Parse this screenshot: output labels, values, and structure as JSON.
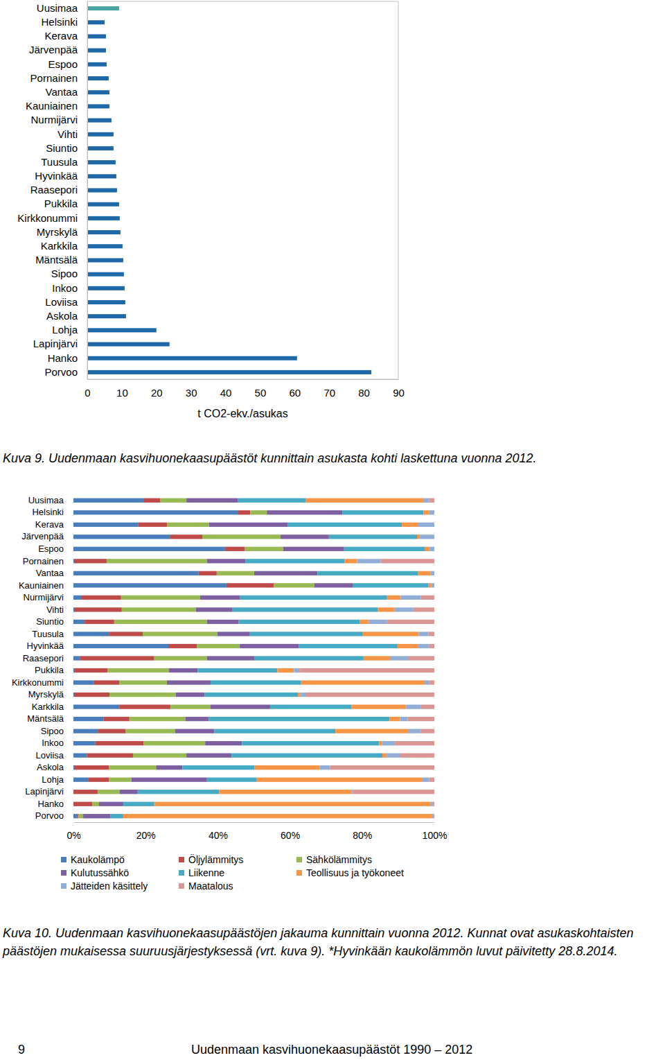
{
  "chart_data": [
    {
      "type": "bar",
      "orientation": "horizontal",
      "title": "Kuva 9. Uudenmaan kasvihuonekaasupäästöt kunnittain asukasta kohti laskettuna vuonna 2012.",
      "xlabel": "t CO2-ekv./asukas",
      "categories": [
        "Uusimaa",
        "Helsinki",
        "Kerava",
        "Järvenpää",
        "Espoo",
        "Pornainen",
        "Vantaa",
        "Kauniainen",
        "Nurmijärvi",
        "Vihti",
        "Siuntio",
        "Tuusula",
        "Hyvinkää",
        "Raasepori",
        "Pukkila",
        "Kirkkonummi",
        "Myrskylä",
        "Karkkila",
        "Mäntsälä",
        "Sipoo",
        "Inkoo",
        "Loviisa",
        "Askola",
        "Lohja",
        "Lapinjärvi",
        "Hanko",
        "Porvoo"
      ],
      "values": [
        9.2,
        5.0,
        5.4,
        5.4,
        5.6,
        6.2,
        6.4,
        6.4,
        7.0,
        7.6,
        7.6,
        8.2,
        8.4,
        8.6,
        9.2,
        9.4,
        9.6,
        10.2,
        10.4,
        10.6,
        10.8,
        11.0,
        11.2,
        20.0,
        23.8,
        60.7,
        82.2
      ],
      "colors": [
        "#4aa3a3",
        "#1f68a8",
        "#1f68a8",
        "#1f68a8",
        "#1f68a8",
        "#1f68a8",
        "#1f68a8",
        "#1f68a8",
        "#1f68a8",
        "#1f68a8",
        "#1f68a8",
        "#1f68a8",
        "#1f68a8",
        "#1f68a8",
        "#1f68a8",
        "#1f68a8",
        "#1f68a8",
        "#1f68a8",
        "#1f68a8",
        "#1f68a8",
        "#1f68a8",
        "#1f68a8",
        "#1f68a8",
        "#1f68a8",
        "#1f68a8",
        "#1f68a8",
        "#1f68a8"
      ],
      "xlim": [
        0,
        90
      ],
      "xticks": [
        0,
        10,
        20,
        30,
        40,
        50,
        60,
        70,
        80,
        90
      ],
      "grid": false
    },
    {
      "type": "bar",
      "orientation": "horizontal",
      "stacked": true,
      "legend": "bottom",
      "grid": false,
      "title": "Kuva 10. Uudenmaan kasvihuonekaasupäästöjen jakauma kunnittain vuonna 2012. Kunnat ovat asukaskohtaisten päästöjen mukaisessa suuruusjärjestyksessä (vrt. kuva 9). *Hyvinkään kaukolämmön luvut päivitetty 28.8.2014.",
      "categories": [
        "Uusimaa",
        "Helsinki",
        "Kerava",
        "Järvenpää",
        "Espoo",
        "Pornainen",
        "Vantaa",
        "Kauniainen",
        "Nurmijärvi",
        "Vihti",
        "Siuntio",
        "Tuusula",
        "Hyvinkää",
        "Raasepori",
        "Pukkila",
        "Kirkkonummi",
        "Myrskylä",
        "Karkkila",
        "Mäntsälä",
        "Sipoo",
        "Inkoo",
        "Loviisa",
        "Askola",
        "Lohja",
        "Lapinjärvi",
        "Hanko",
        "Porvoo"
      ],
      "xlim": [
        0,
        100
      ],
      "xticks": [
        {
          "value": 0,
          "label": "0%"
        },
        {
          "value": 20,
          "label": "20%"
        },
        {
          "value": 40,
          "label": "40%"
        },
        {
          "value": 60,
          "label": "60%"
        },
        {
          "value": 80,
          "label": "80%"
        },
        {
          "value": 100,
          "label": "100%"
        }
      ],
      "series": [
        {
          "name": "Kaukolämpö",
          "color": "#4a7ebb",
          "values": [
            19.4,
            45.5,
            18.0,
            26.7,
            42.0,
            0.2,
            34.7,
            42.4,
            2.3,
            0.2,
            3.1,
            10.0,
            26.3,
            1.9,
            0.4,
            5.6,
            0.2,
            12.7,
            8.4,
            6.9,
            6.0,
            3.8,
            0.2,
            4.2,
            0,
            0,
            1.0
          ]
        },
        {
          "name": "Öljylämmitys",
          "color": "#be4b48",
          "values": [
            4.6,
            3.5,
            7.9,
            9.0,
            5.4,
            9.0,
            5.0,
            13.1,
            10.9,
            13.2,
            8.2,
            9.2,
            7.9,
            20.5,
            9.0,
            7.1,
            9.8,
            14.2,
            7.1,
            7.5,
            13.4,
            12.7,
            9.6,
            5.6,
            6.7,
            5.2,
            0.4
          ]
        },
        {
          "name": "Sähkölämmitys",
          "color": "#98b954",
          "values": [
            7.3,
            4.6,
            11.7,
            21.7,
            10.7,
            27.8,
            10.4,
            11.3,
            21.9,
            20.5,
            25.7,
            20.7,
            11.9,
            14.6,
            17.1,
            13.2,
            18.4,
            11.1,
            15.5,
            13.8,
            17.1,
            14.8,
            13.1,
            6.3,
            6.1,
            1.9,
            1.3
          ]
        },
        {
          "name": "Kulutussähkö",
          "color": "#7d60a0",
          "values": [
            14.2,
            20.9,
            21.7,
            13.4,
            16.9,
            10.7,
            17.5,
            10.7,
            11.1,
            10.2,
            8.8,
            9.0,
            16.3,
            13.1,
            7.9,
            12.1,
            7.9,
            16.5,
            6.5,
            10.8,
            10.2,
            12.5,
            7.3,
            20.9,
            5.0,
            6.7,
            7.5
          ]
        },
        {
          "name": "Liikenne",
          "color": "#46aac5",
          "values": [
            18.8,
            22.5,
            31.7,
            24.4,
            22.3,
            27.4,
            27.8,
            20.9,
            40.7,
            40.3,
            33.6,
            31.3,
            27.4,
            30.3,
            22.1,
            25.1,
            25.9,
            22.5,
            50.1,
            33.6,
            38.0,
            41.8,
            20.0,
            13.8,
            22.6,
            8.6,
            3.6
          ]
        },
        {
          "name": "Teollisuus ja työkoneet",
          "color": "#f69546",
          "values": [
            32.8,
            1.5,
            4.4,
            0.8,
            1.3,
            3.5,
            3.5,
            0.8,
            3.8,
            4.6,
            2.5,
            15.5,
            5.8,
            7.3,
            4.6,
            34.2,
            0.6,
            15.2,
            2.9,
            20.3,
            0.8,
            1.2,
            18.0,
            45.9,
            36.7,
            76.6,
            85.6
          ]
        },
        {
          "name": "Jätteiden käsittely",
          "color": "#93aed6",
          "values": [
            1.5,
            1.5,
            4.6,
            4.0,
            1.4,
            6.5,
            1.1,
            0.8,
            5.6,
            5.2,
            5.0,
            2.7,
            2.9,
            5.2,
            1.5,
            1.3,
            1.5,
            4.0,
            2.1,
            3.3,
            3.6,
            3.6,
            2.9,
            1.9,
            0.4,
            0.6,
            0.4
          ]
        },
        {
          "name": "Maatalous",
          "color": "#d99694",
          "values": [
            1.4,
            0,
            0,
            0,
            0,
            14.9,
            0,
            0,
            3.7,
            5.8,
            13.1,
            1.6,
            1.5,
            7.1,
            37.4,
            1.4,
            35.7,
            3.8,
            7.4,
            3.8,
            10.9,
            9.6,
            28.9,
            1.4,
            22.5,
            0.4,
            0.2
          ]
        }
      ]
    }
  ],
  "footer": {
    "page": "9",
    "text": "Uudenmaan kasvihuonekaasupäästöt 1990 – 2012"
  }
}
